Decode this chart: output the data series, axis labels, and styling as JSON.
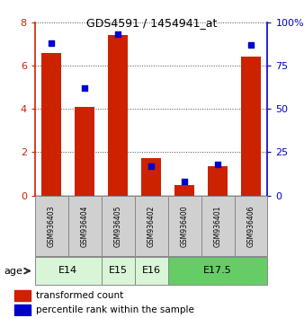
{
  "title": "GDS4591 / 1454941_at",
  "samples": [
    "GSM936403",
    "GSM936404",
    "GSM936405",
    "GSM936402",
    "GSM936400",
    "GSM936401",
    "GSM936406"
  ],
  "red_bars": [
    6.6,
    4.1,
    7.4,
    1.75,
    0.5,
    1.35,
    6.4
  ],
  "blue_squares_pct": [
    88,
    62,
    93,
    17,
    8,
    18,
    87
  ],
  "ylim_left": [
    0,
    8
  ],
  "ylim_right": [
    0,
    100
  ],
  "yticks_left": [
    0,
    2,
    4,
    6,
    8
  ],
  "yticks_right": [
    0,
    25,
    50,
    75,
    100
  ],
  "yticklabels_right": [
    "0",
    "25",
    "50",
    "75",
    "100%"
  ],
  "age_groups": [
    {
      "label": "E14",
      "samples": [
        "GSM936403",
        "GSM936404"
      ],
      "color": "#d8f5d8"
    },
    {
      "label": "E15",
      "samples": [
        "GSM936405"
      ],
      "color": "#d8f5d8"
    },
    {
      "label": "E16",
      "samples": [
        "GSM936402"
      ],
      "color": "#d8f5d8"
    },
    {
      "label": "E17.5",
      "samples": [
        "GSM936400",
        "GSM936401",
        "GSM936406"
      ],
      "color": "#66cc66"
    }
  ],
  "bar_color": "#cc2200",
  "square_color": "#0000cc",
  "legend_fontsize": 7.5,
  "age_label": "age"
}
